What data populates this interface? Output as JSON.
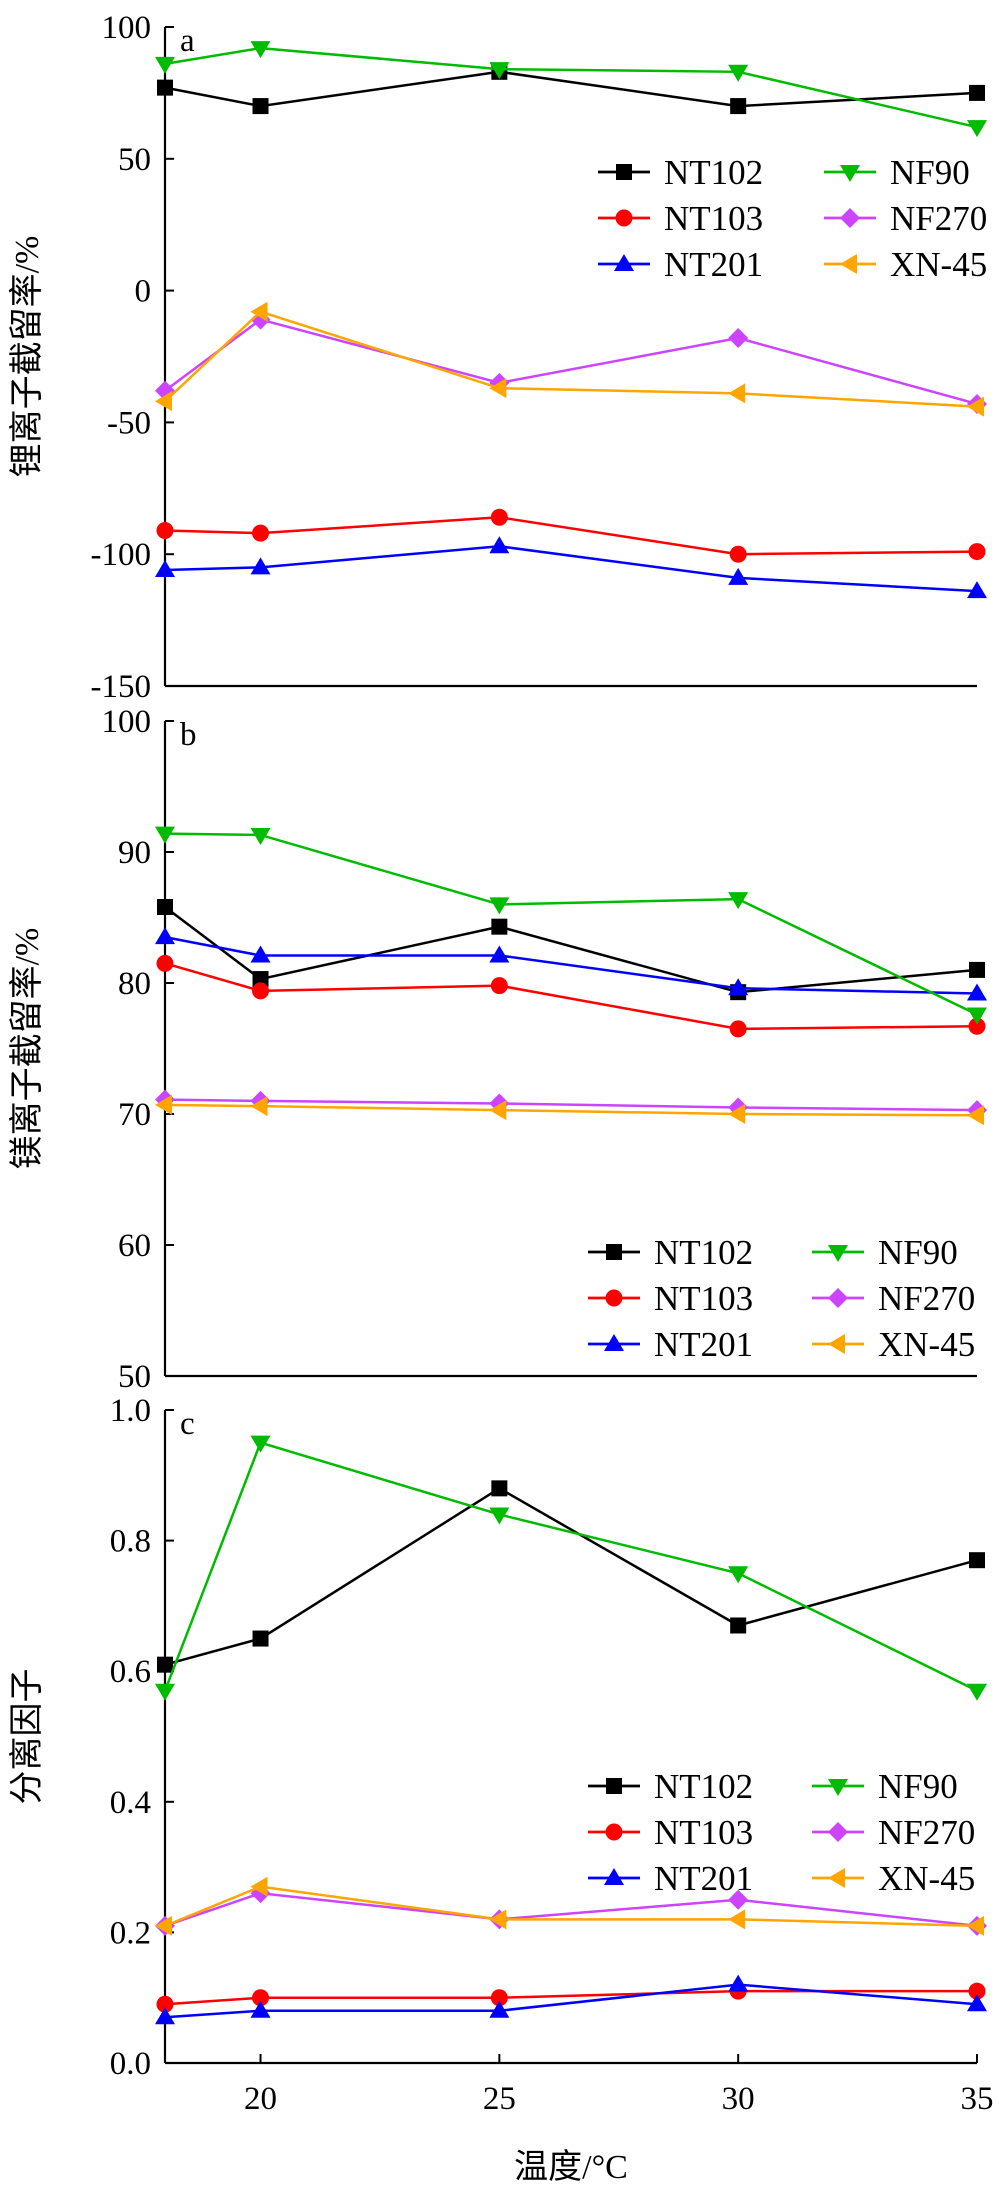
{
  "chart_data": [
    {
      "panel_label": "a",
      "type": "line",
      "ylabel": "锂离子截留率/%",
      "ylim": [
        -150,
        100
      ],
      "yticks": [
        100,
        50,
        0,
        -50,
        -100,
        -150
      ],
      "xlim": [
        18,
        35
      ],
      "legend_placement": "top-right",
      "x": [
        18,
        20,
        25,
        30,
        35
      ],
      "series": [
        {
          "name": "NT102",
          "color": "#000000",
          "marker": "square",
          "values": [
            77,
            70,
            83,
            70,
            75
          ]
        },
        {
          "name": "NT103",
          "color": "#ff0000",
          "marker": "circle",
          "values": [
            -91,
            -92,
            -86,
            -100,
            -99
          ]
        },
        {
          "name": "NT201",
          "color": "#0000ff",
          "marker": "triangle-up",
          "values": [
            -106,
            -105,
            -97,
            -109,
            -114
          ]
        },
        {
          "name": "NF90",
          "color": "#00bb00",
          "marker": "triangle-down",
          "values": [
            86,
            92,
            84,
            83,
            62
          ]
        },
        {
          "name": "NF270",
          "color": "#cc44ff",
          "marker": "diamond",
          "values": [
            -38,
            -11,
            -35,
            -18,
            -43
          ]
        },
        {
          "name": "XN-45",
          "color": "#ffa500",
          "marker": "triangle-left",
          "values": [
            -42,
            -8,
            -37,
            -39,
            -44
          ]
        }
      ]
    },
    {
      "panel_label": "b",
      "type": "line",
      "ylabel": "镁离子截留率/%",
      "ylim": [
        50,
        100
      ],
      "yticks": [
        100,
        90,
        80,
        70,
        60,
        50
      ],
      "xlim": [
        18,
        35
      ],
      "legend_placement": "bottom-right",
      "x": [
        18,
        20,
        25,
        30,
        35
      ],
      "series": [
        {
          "name": "NT102",
          "color": "#000000",
          "marker": "square",
          "values": [
            85.8,
            80.3,
            84.3,
            79.3,
            81.0
          ]
        },
        {
          "name": "NT103",
          "color": "#ff0000",
          "marker": "circle",
          "values": [
            81.5,
            79.4,
            79.8,
            76.5,
            76.7
          ]
        },
        {
          "name": "NT201",
          "color": "#0000ff",
          "marker": "triangle-up",
          "values": [
            83.5,
            82.1,
            82.1,
            79.6,
            79.2
          ]
        },
        {
          "name": "NF90",
          "color": "#00bb00",
          "marker": "triangle-down",
          "values": [
            91.4,
            91.3,
            86.0,
            86.4,
            77.6
          ]
        },
        {
          "name": "NF270",
          "color": "#cc44ff",
          "marker": "diamond",
          "values": [
            71.1,
            71.0,
            70.8,
            70.5,
            70.3
          ]
        },
        {
          "name": "XN-45",
          "color": "#ffa500",
          "marker": "triangle-left",
          "values": [
            70.7,
            70.6,
            70.3,
            70.0,
            69.9
          ]
        }
      ]
    },
    {
      "panel_label": "c",
      "type": "line",
      "ylabel": "分离因子",
      "xlabel": "温度/°C",
      "ylim": [
        0.0,
        1.0
      ],
      "yticks": [
        "1.0",
        "0.8",
        "0.6",
        "0.4",
        "0.2",
        "0.0"
      ],
      "xlim": [
        18,
        35
      ],
      "xticks": [
        20,
        25,
        30,
        35
      ],
      "legend_placement": "bottom-right",
      "x": [
        18,
        20,
        25,
        30,
        35
      ],
      "series": [
        {
          "name": "NT102",
          "color": "#000000",
          "marker": "square",
          "values": [
            0.61,
            0.65,
            0.88,
            0.67,
            0.77
          ]
        },
        {
          "name": "NT103",
          "color": "#ff0000",
          "marker": "circle",
          "values": [
            0.09,
            0.1,
            0.1,
            0.11,
            0.11
          ]
        },
        {
          "name": "NT201",
          "color": "#0000ff",
          "marker": "triangle-up",
          "values": [
            0.07,
            0.08,
            0.08,
            0.12,
            0.09
          ]
        },
        {
          "name": "NF90",
          "color": "#00bb00",
          "marker": "triangle-down",
          "values": [
            0.57,
            0.95,
            0.84,
            0.75,
            0.57
          ]
        },
        {
          "name": "NF270",
          "color": "#cc44ff",
          "marker": "diamond",
          "values": [
            0.21,
            0.26,
            0.22,
            0.25,
            0.21
          ]
        },
        {
          "name": "XN-45",
          "color": "#ffa500",
          "marker": "triangle-left",
          "values": [
            0.21,
            0.27,
            0.22,
            0.22,
            0.21
          ]
        }
      ]
    }
  ]
}
